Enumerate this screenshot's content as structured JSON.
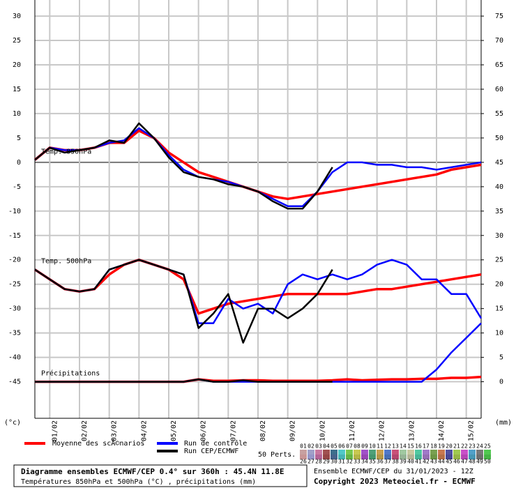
{
  "chart_data": {
    "type": "line",
    "x": [
      0,
      12,
      24,
      36,
      48,
      60,
      72,
      84,
      96,
      108,
      120,
      132,
      144,
      156,
      168,
      180,
      192,
      204,
      216,
      228,
      240,
      252,
      264,
      276,
      288,
      300,
      312,
      324,
      336,
      348,
      360
    ],
    "xlim": [
      0,
      360
    ],
    "xticks": [
      {
        "value": 12,
        "label": "01/02"
      },
      {
        "value": 36,
        "label": "02/02"
      },
      {
        "value": 60,
        "label": "03/02"
      },
      {
        "value": 84,
        "label": "04/02"
      },
      {
        "value": 108,
        "label": "05/02"
      },
      {
        "value": 132,
        "label": "06/02"
      },
      {
        "value": 156,
        "label": "07/02"
      },
      {
        "value": 180,
        "label": "08/02"
      },
      {
        "value": 204,
        "label": "09/02"
      },
      {
        "value": 228,
        "label": "10/02"
      },
      {
        "value": 252,
        "label": "11/02"
      },
      {
        "value": 276,
        "label": "12/02"
      },
      {
        "value": 300,
        "label": "13/02"
      },
      {
        "value": 324,
        "label": "14/02"
      },
      {
        "value": 348,
        "label": "15/02"
      }
    ],
    "ylim": [
      -52.5,
      33.3
    ],
    "yticks": [
      -45,
      -40,
      -35,
      -30,
      -25,
      -20,
      -15,
      -10,
      -5,
      0,
      5,
      10,
      15,
      20,
      25,
      30
    ],
    "y2lim": [
      -7.5,
      78.3
    ],
    "y2ticks": [
      0,
      5,
      10,
      15,
      20,
      25,
      30,
      35,
      40,
      45,
      50,
      55,
      60,
      65,
      70,
      75
    ],
    "ylabel": "(°c)",
    "y2label": "(mm)",
    "grid": true,
    "legend": [
      {
        "name": "Moyenne des scÃ©narios",
        "color": "#ff0000"
      },
      {
        "name": "Run de contrôle",
        "color": "#0000ff"
      },
      {
        "name": "Run CEP/ECMWF",
        "color": "#000000"
      }
    ],
    "panels": [
      {
        "label": "Temp. 850hPa",
        "axis": "y",
        "mean": [
          0.5,
          3,
          2.5,
          2.5,
          3,
          4,
          4,
          6.5,
          5,
          2,
          0,
          -2,
          -3,
          -4,
          -5,
          -6,
          -7,
          -7.5,
          -7,
          -6.5,
          -6,
          -5.5,
          -5,
          -4.5,
          -4,
          -3.5,
          -3,
          -2.5,
          -1.5,
          -1,
          -0.5
        ],
        "control": [
          0.5,
          3,
          2.5,
          2.5,
          3,
          4,
          4.5,
          7,
          5,
          1.5,
          -1.5,
          -3,
          -3.5,
          -4,
          -5,
          -6,
          -7.5,
          -9,
          -9,
          -6,
          -2,
          0,
          0,
          -0.5,
          -0.5,
          -1,
          -1,
          -1.5,
          -1,
          -0.5,
          0
        ],
        "cep": [
          0.5,
          3,
          2,
          2.5,
          3,
          4.5,
          4,
          8,
          5,
          1,
          -2,
          -3,
          -3.5,
          -4.5,
          -5,
          -6,
          -8,
          -9.5,
          -9.5,
          -6,
          -1,
          null,
          null,
          null,
          null,
          null,
          null,
          null,
          null,
          null,
          null
        ]
      },
      {
        "label": "Temp. 500hPa",
        "axis": "y",
        "mean": [
          -22,
          -24,
          -26,
          -26.5,
          -26,
          -23,
          -21,
          -20,
          -21,
          -22,
          -24,
          -31,
          -30,
          -29,
          -28.5,
          -28,
          -27.5,
          -27,
          -27,
          -27,
          -27,
          -27,
          -26.5,
          -26,
          -26,
          -25.5,
          -25,
          -24.5,
          -24,
          -23.5,
          -23
        ],
        "control": [
          -22,
          -24,
          -26,
          -26.5,
          -26,
          -22,
          -21,
          -20,
          -21,
          -22,
          -23,
          -33,
          -33,
          -28,
          -30,
          -29,
          -31,
          -25,
          -23,
          -24,
          -23,
          -24,
          -23,
          -21,
          -20,
          -21,
          -24,
          -24,
          -27,
          -27,
          -32
        ],
        "cep": [
          -22,
          -24,
          -26,
          -26.5,
          -26,
          -22,
          -21,
          -20,
          -21,
          -22,
          -23,
          -34,
          -31,
          -27,
          -37,
          -30,
          -30,
          -32,
          -30,
          -27,
          -22,
          null,
          null,
          null,
          null,
          null,
          null,
          null,
          null,
          null,
          null
        ]
      },
      {
        "label": "Précipitations",
        "axis": "y2",
        "mean": [
          0,
          0,
          0,
          0,
          0,
          0,
          0,
          0,
          0,
          0,
          0,
          0.5,
          0.2,
          0.2,
          0.3,
          0.3,
          0.2,
          0.2,
          0.2,
          0.2,
          0.3,
          0.5,
          0.3,
          0.4,
          0.5,
          0.5,
          0.6,
          0.6,
          0.8,
          0.8,
          1
        ],
        "control": [
          0,
          0,
          0,
          0,
          0,
          0,
          0,
          0,
          0,
          0,
          0,
          0.5,
          0,
          0,
          0,
          0,
          0,
          0,
          0,
          0,
          0,
          0,
          0,
          0,
          0,
          0,
          0,
          2.5,
          6,
          9,
          12
        ],
        "cep": [
          0,
          0,
          0,
          0,
          0,
          0,
          0,
          0,
          0,
          0,
          0,
          0.5,
          0,
          0,
          0.3,
          0,
          0,
          0,
          0,
          0,
          0,
          null,
          null,
          null,
          null,
          null,
          null,
          null,
          null,
          null,
          null
        ]
      }
    ],
    "perts": {
      "label": "50 Perts.",
      "members": [
        {
          "name": "01",
          "color": "#c8a0a0"
        },
        {
          "name": "02",
          "color": "#a0a0c8"
        },
        {
          "name": "03",
          "color": "#c878a0"
        },
        {
          "name": "04",
          "color": "#a05050"
        },
        {
          "name": "05",
          "color": "#3c6e8c"
        },
        {
          "name": "06",
          "color": "#50c8c8"
        },
        {
          "name": "07",
          "color": "#78c850"
        },
        {
          "name": "08",
          "color": "#c8c850"
        },
        {
          "name": "09",
          "color": "#a050c8"
        },
        {
          "name": "10",
          "color": "#50a078"
        },
        {
          "name": "11",
          "color": "#c8a050"
        },
        {
          "name": "12",
          "color": "#5078c8"
        },
        {
          "name": "13",
          "color": "#c85078"
        },
        {
          "name": "14",
          "color": "#a0c8a0"
        },
        {
          "name": "15",
          "color": "#c8c8a0"
        },
        {
          "name": "16",
          "color": "#50c8a0"
        },
        {
          "name": "17",
          "color": "#a078c8"
        },
        {
          "name": "18",
          "color": "#78a050"
        },
        {
          "name": "19",
          "color": "#c87850"
        },
        {
          "name": "20",
          "color": "#5050a0"
        },
        {
          "name": "21",
          "color": "#a0c850"
        },
        {
          "name": "22",
          "color": "#c850c8"
        },
        {
          "name": "23",
          "color": "#50a0c8"
        },
        {
          "name": "24",
          "color": "#787878"
        },
        {
          "name": "25",
          "color": "#50c850"
        },
        {
          "name": "26",
          "color": "#c89696"
        },
        {
          "name": "27",
          "color": "#9696c8"
        },
        {
          "name": "28",
          "color": "#b46496"
        },
        {
          "name": "29",
          "color": "#964646"
        },
        {
          "name": "30",
          "color": "#46648c"
        },
        {
          "name": "31",
          "color": "#46b4b4"
        },
        {
          "name": "32",
          "color": "#64b446"
        },
        {
          "name": "33",
          "color": "#b4b446"
        },
        {
          "name": "34",
          "color": "#9646b4"
        },
        {
          "name": "35",
          "color": "#46966e"
        },
        {
          "name": "36",
          "color": "#b49646"
        },
        {
          "name": "37",
          "color": "#466eb4"
        },
        {
          "name": "38",
          "color": "#b4466e"
        },
        {
          "name": "39",
          "color": "#96b496"
        },
        {
          "name": "40",
          "color": "#b4b496"
        },
        {
          "name": "41",
          "color": "#46b496"
        },
        {
          "name": "42",
          "color": "#966eb4"
        },
        {
          "name": "43",
          "color": "#6e9646"
        },
        {
          "name": "44",
          "color": "#b46e46"
        },
        {
          "name": "45",
          "color": "#464696"
        },
        {
          "name": "46",
          "color": "#96b446"
        },
        {
          "name": "47",
          "color": "#b446b4"
        },
        {
          "name": "48",
          "color": "#4696b4"
        },
        {
          "name": "49",
          "color": "#6e6e6e"
        },
        {
          "name": "50",
          "color": "#46b446"
        }
      ]
    },
    "caption": {
      "line1": "Diagramme ensembles ECMWF/CEP 0.4° sur 360h : 45.4N 11.8E",
      "line2": "Températures 850hPa et 500hPa (°C) , précipitations (mm)"
    },
    "info": {
      "line1": "Ensemble ECMWF/CEP du 31/01/2023 - 12Z",
      "line2": "Copyright 2023 Meteociel.fr - ECMWF"
    }
  }
}
